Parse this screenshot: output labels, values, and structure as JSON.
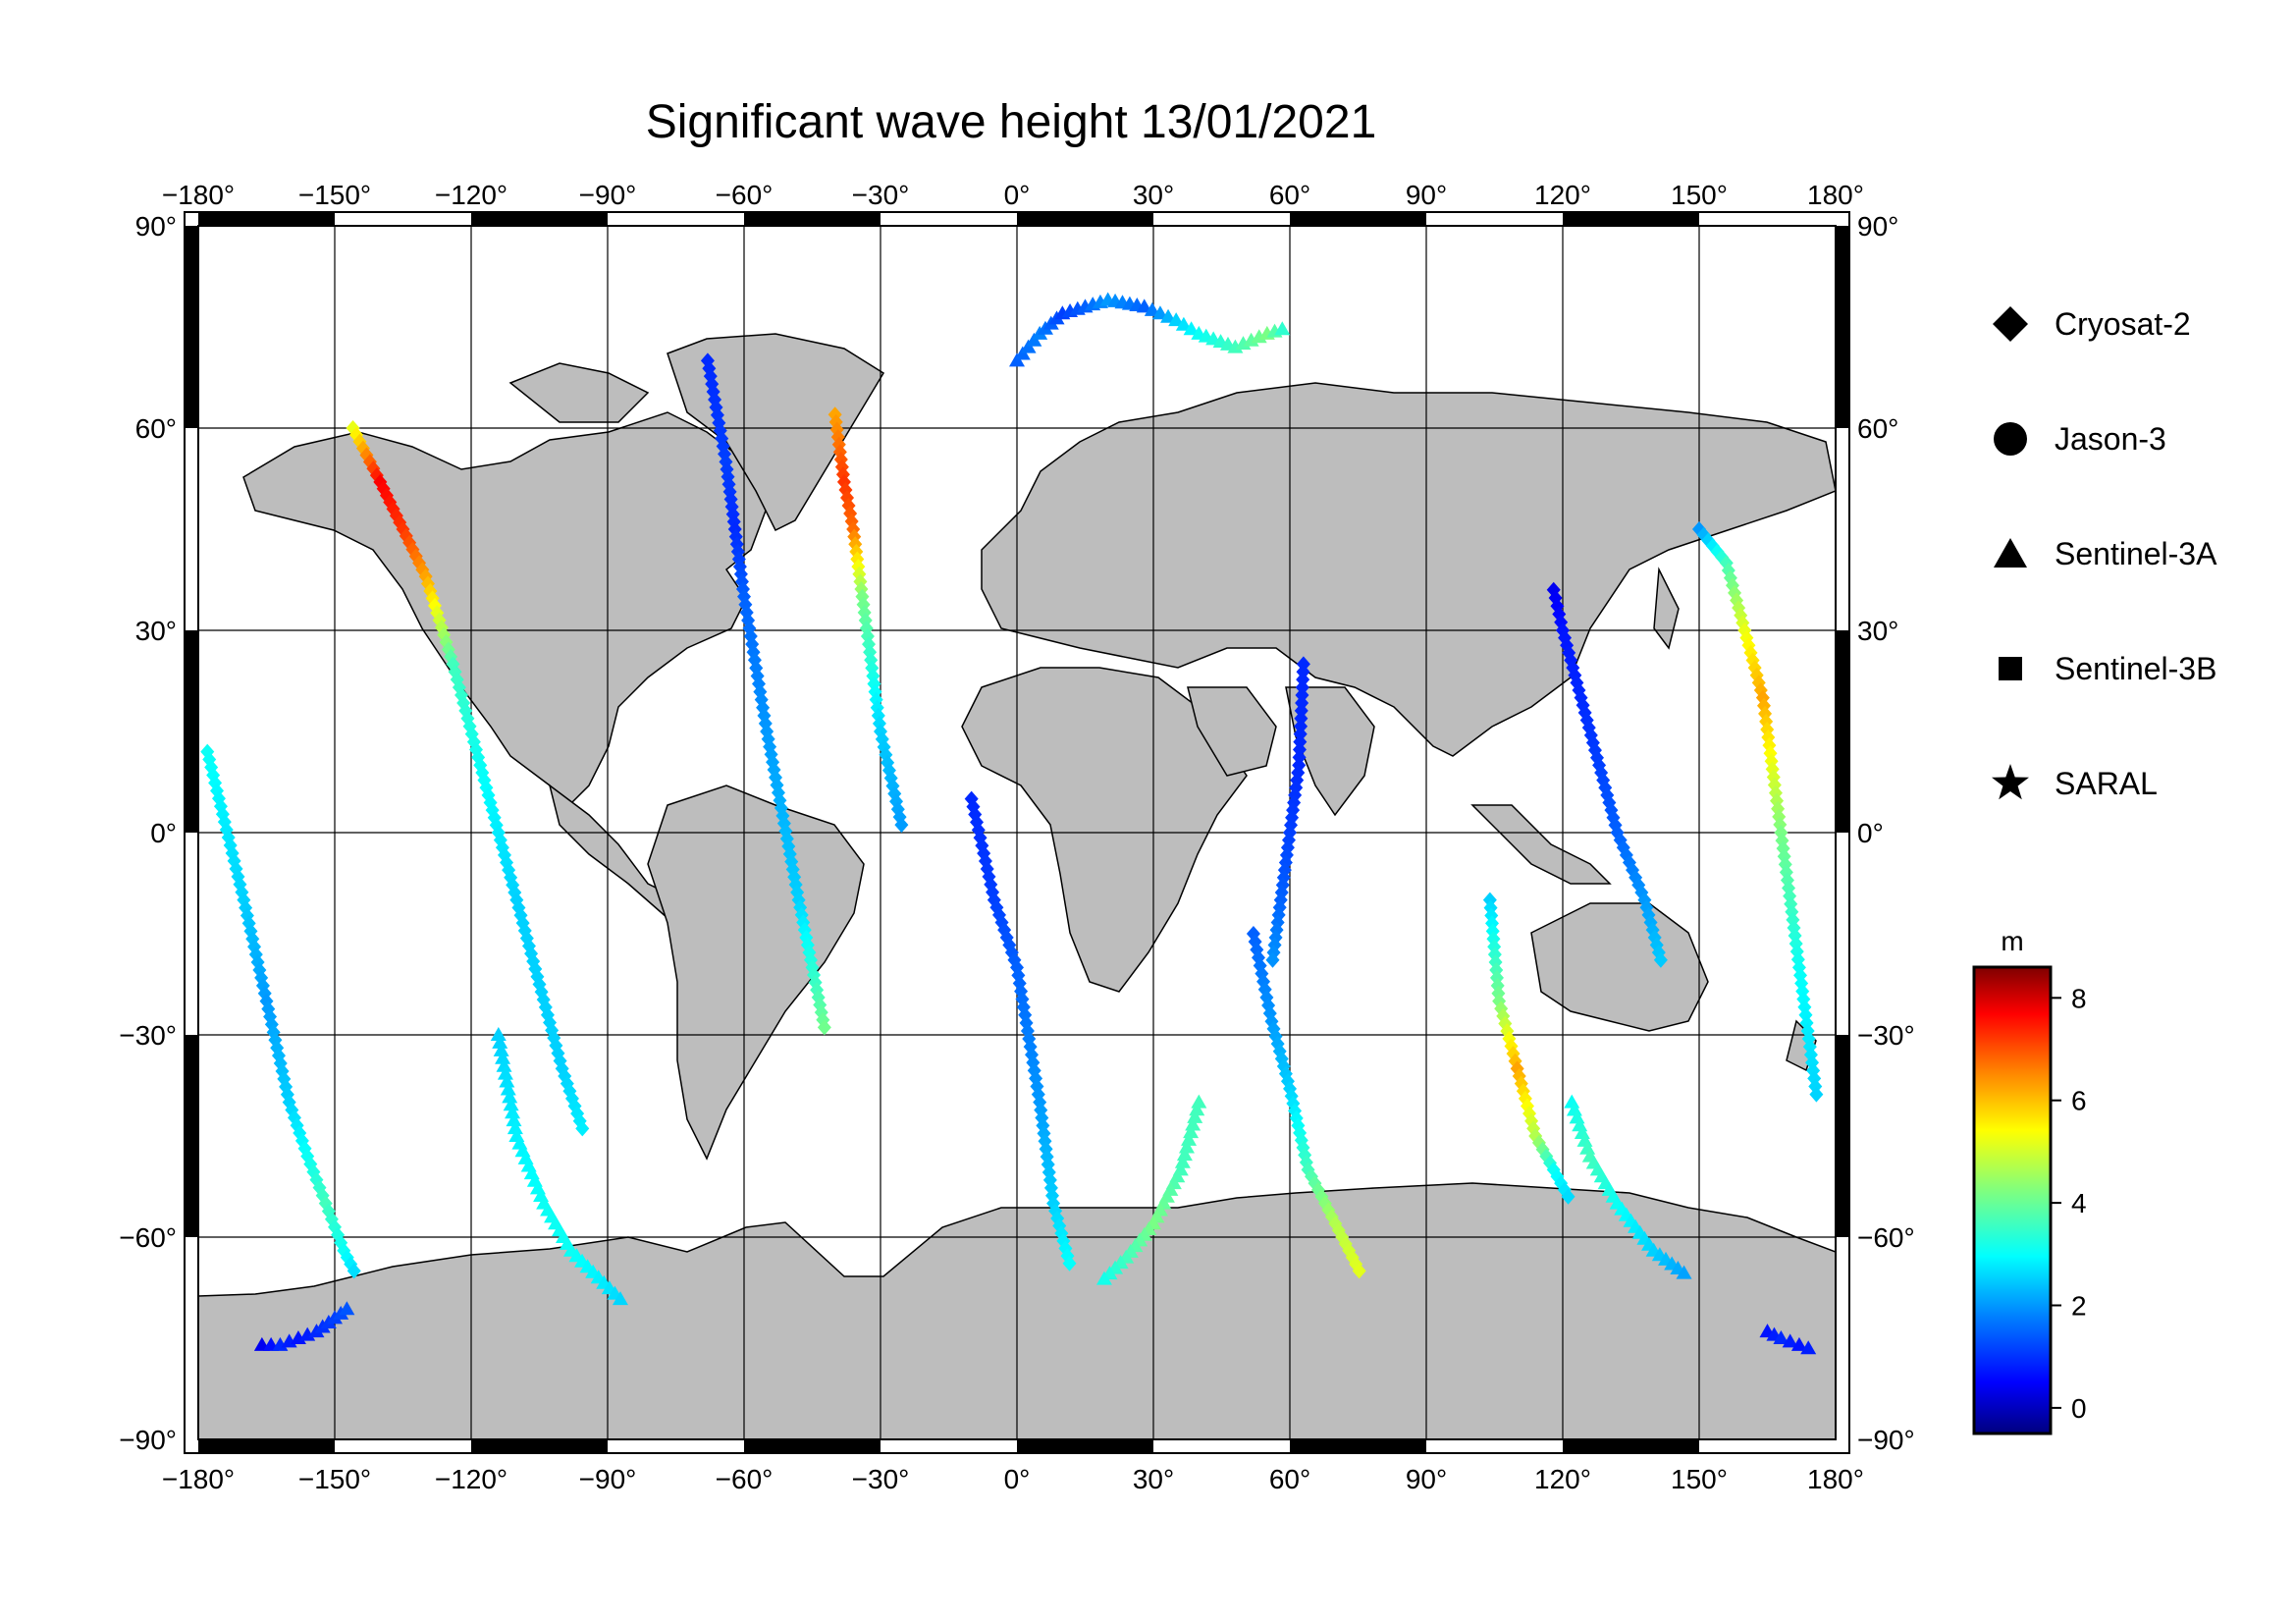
{
  "title": "Significant wave height 13/01/2021",
  "map": {
    "lon_ticks": [
      "-180",
      "-150",
      "-120",
      "-90",
      "-60",
      "-30",
      "0",
      "30",
      "60",
      "90",
      "120",
      "150",
      "180"
    ],
    "lat_ticks": [
      "90",
      "60",
      "30",
      "0",
      "-30",
      "-60",
      "-90"
    ],
    "degree_symbol": "°",
    "land_color": "#bdbdbd",
    "ocean_color": "#ffffff",
    "lon_range": [
      -180,
      180
    ],
    "lat_range": [
      -90,
      90
    ]
  },
  "legend": {
    "items": [
      {
        "label": "Cryosat-2",
        "symbol": "diamond-icon"
      },
      {
        "label": "Jason-3",
        "symbol": "circle-icon"
      },
      {
        "label": "Sentinel-3A",
        "symbol": "triangle-icon"
      },
      {
        "label": "Sentinel-3B",
        "symbol": "square-icon"
      },
      {
        "label": "SARAL",
        "symbol": "star-icon"
      }
    ]
  },
  "colorbar": {
    "unit": "m",
    "ticks": [
      "8",
      "6",
      "4",
      "2",
      "0"
    ],
    "range": [
      -0.5,
      8.6
    ],
    "colormap": [
      "#00007f",
      "#0000ff",
      "#007fff",
      "#00ffff",
      "#7fff7f",
      "#ffff00",
      "#ff7f00",
      "#ff0000",
      "#7f0000"
    ]
  },
  "chart_data": {
    "type": "scatter",
    "title": "Significant wave height 13/01/2021",
    "xlabel": "",
    "ylabel": "",
    "xlim": [
      -180,
      180
    ],
    "ylim": [
      -90,
      90
    ],
    "series": [
      {
        "name": "Cryosat-2",
        "marker": "diamond",
        "tracks": [
          {
            "lons": [
              -178,
              -170,
              -165,
              -160,
              -156,
              -152,
              -148,
              -145
            ],
            "lats": [
              12,
              -10,
              -25,
              -40,
              -48,
              -55,
              -62,
              -66
            ],
            "hs": [
              3,
              2.5,
              2,
              2.5,
              3,
              3.5,
              3,
              2.5
            ]
          },
          {
            "lons": [
              -146,
              -140,
              -135,
              -130,
              -124,
              -118,
              -110,
              -100,
              -95
            ],
            "lats": [
              60,
              52,
              45,
              38,
              25,
              10,
              -10,
              -35,
              -45
            ],
            "hs": [
              5,
              7.5,
              7,
              6,
              3.5,
              3,
              2.5,
              2.5,
              2.8
            ]
          },
          {
            "lons": [
              -68,
              -64,
              -62,
              -60,
              -55,
              -48,
              -42
            ],
            "lats": [
              70,
              55,
              45,
              35,
              15,
              -10,
              -30
            ],
            "hs": [
              1,
              1.2,
              1,
              1.5,
              2,
              2.5,
              4
            ]
          },
          {
            "lons": [
              -40,
              -38,
              -36,
              -34,
              -30,
              -25
            ],
            "lats": [
              62,
              52,
              45,
              35,
              15,
              0
            ],
            "hs": [
              6,
              7,
              6.5,
              4,
              2.5,
              2
            ]
          },
          {
            "lons": [
              -10,
              -5,
              0,
              5,
              8,
              12
            ],
            "lats": [
              5,
              -10,
              -20,
              -40,
              -55,
              -65
            ],
            "hs": [
              1,
              1.2,
              1.5,
              2,
              2.5,
              3
            ]
          },
          {
            "lons": [
              52,
              56,
              60,
              64,
              70,
              76
            ],
            "lats": [
              -15,
              -28,
              -38,
              -50,
              -58,
              -66
            ],
            "hs": [
              1.5,
              2,
              2.5,
              3.5,
              4.5,
              5
            ]
          },
          {
            "lons": [
              63,
              62,
              60,
              58,
              56
            ],
            "lats": [
              25,
              10,
              0,
              -10,
              -20
            ],
            "hs": [
              1,
              1,
              1.2,
              1.5,
              2
            ]
          },
          {
            "lons": [
              104,
              106,
              110,
              114,
              118,
              122
            ],
            "lats": [
              -10,
              -25,
              -35,
              -45,
              -50,
              -55
            ],
            "hs": [
              2.5,
              4,
              6,
              4.5,
              3,
              2.5
            ]
          },
          {
            "lons": [
              118,
              120,
              124,
              128,
              132,
              138,
              142
            ],
            "lats": [
              36,
              30,
              20,
              10,
              0,
              -10,
              -20
            ],
            "hs": [
              0.5,
              0.8,
              1,
              1.2,
              1.5,
              2,
              2.5
            ]
          },
          {
            "lons": [
              150,
              156,
              160,
              164,
              168,
              172,
              176
            ],
            "lats": [
              45,
              40,
              30,
              20,
              0,
              -20,
              -40
            ],
            "hs": [
              2,
              3.5,
              5,
              6,
              4,
              3,
              2.5
            ]
          }
        ]
      },
      {
        "name": "Sentinel-3A",
        "marker": "triangle",
        "tracks": [
          {
            "lons": [
              -166,
              -162,
              -158,
              -154,
              -150,
              -146
            ],
            "lats": [
              -76,
              -76,
              -75,
              -74,
              -72,
              -70
            ],
            "hs": [
              0.5,
              1,
              0.8,
              1,
              1.2,
              1.5
            ]
          },
          {
            "lons": [
              -114,
              -110,
              -104,
              -98,
              -92,
              -86
            ],
            "lats": [
              -30,
              -45,
              -55,
              -62,
              -66,
              -70
            ],
            "hs": [
              2.5,
              2.8,
              3,
              3,
              2.8,
              2.5
            ]
          },
          {
            "lons": [
              0,
              5,
              10,
              15,
              20,
              28,
              35,
              40,
              48,
              55,
              60
            ],
            "lats": [
              70,
              74,
              77,
              78,
              79,
              78,
              76,
              74,
              72,
              74,
              75
            ],
            "hs": [
              1.5,
              1.8,
              1.2,
              1.5,
              2,
              1.5,
              2.5,
              3,
              3.5,
              4,
              3
            ]
          },
          {
            "lons": [
              40,
              36,
              30,
              24,
              18
            ],
            "lats": [
              -40,
              -50,
              -58,
              -63,
              -67
            ],
            "hs": [
              3.5,
              3.5,
              4,
              3.5,
              3
            ]
          },
          {
            "lons": [
              122,
              126,
              132,
              140,
              148
            ],
            "lats": [
              -40,
              -48,
              -55,
              -62,
              -66
            ],
            "hs": [
              3,
              3.5,
              3,
              2.5,
              2
            ]
          },
          {
            "lons": [
              165,
              168,
              172,
              176
            ],
            "lats": [
              -74,
              -75,
              -76,
              -77
            ],
            "hs": [
              0.8,
              1,
              0.8,
              1
            ]
          }
        ]
      },
      {
        "name": "Jason-3",
        "marker": "circle",
        "tracks": []
      },
      {
        "name": "Sentinel-3B",
        "marker": "square",
        "tracks": []
      },
      {
        "name": "SARAL",
        "marker": "star",
        "tracks": []
      }
    ]
  }
}
